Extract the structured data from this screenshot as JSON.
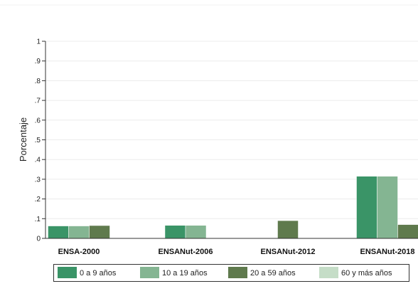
{
  "chart_data": {
    "type": "bar",
    "title": "",
    "xlabel": "",
    "ylabel": "Porcentaje",
    "ylim": [
      0,
      1
    ],
    "yticks": [
      0,
      0.1,
      0.2,
      0.3,
      0.4,
      0.5,
      0.6,
      0.7,
      0.8,
      0.9,
      1
    ],
    "ytick_labels": [
      "0",
      ".1",
      ".2",
      ".3",
      ".4",
      ".5",
      ".6",
      ".7",
      ".8",
      ".9",
      "1"
    ],
    "categories": [
      "ENSA-2000",
      "ENSANut-2006",
      "ENSANut-2012",
      "ENSANut-2018"
    ],
    "series": [
      {
        "name": "0 a 9 años",
        "color": "#3a9467",
        "values": [
          0.063,
          0.066,
          0,
          0.315
        ]
      },
      {
        "name": "10 a 19 años",
        "color": "#84b592",
        "values": [
          0.063,
          0.066,
          0,
          0.315
        ]
      },
      {
        "name": "20 a 59 años",
        "color": "#5f7a4d",
        "values": [
          0.065,
          0,
          0.09,
          0.07
        ]
      },
      {
        "name": "60 y más años",
        "color": "#c5ddc7",
        "values": [
          0,
          0,
          0,
          0
        ]
      }
    ],
    "grid": true,
    "legend_position": "bottom"
  }
}
